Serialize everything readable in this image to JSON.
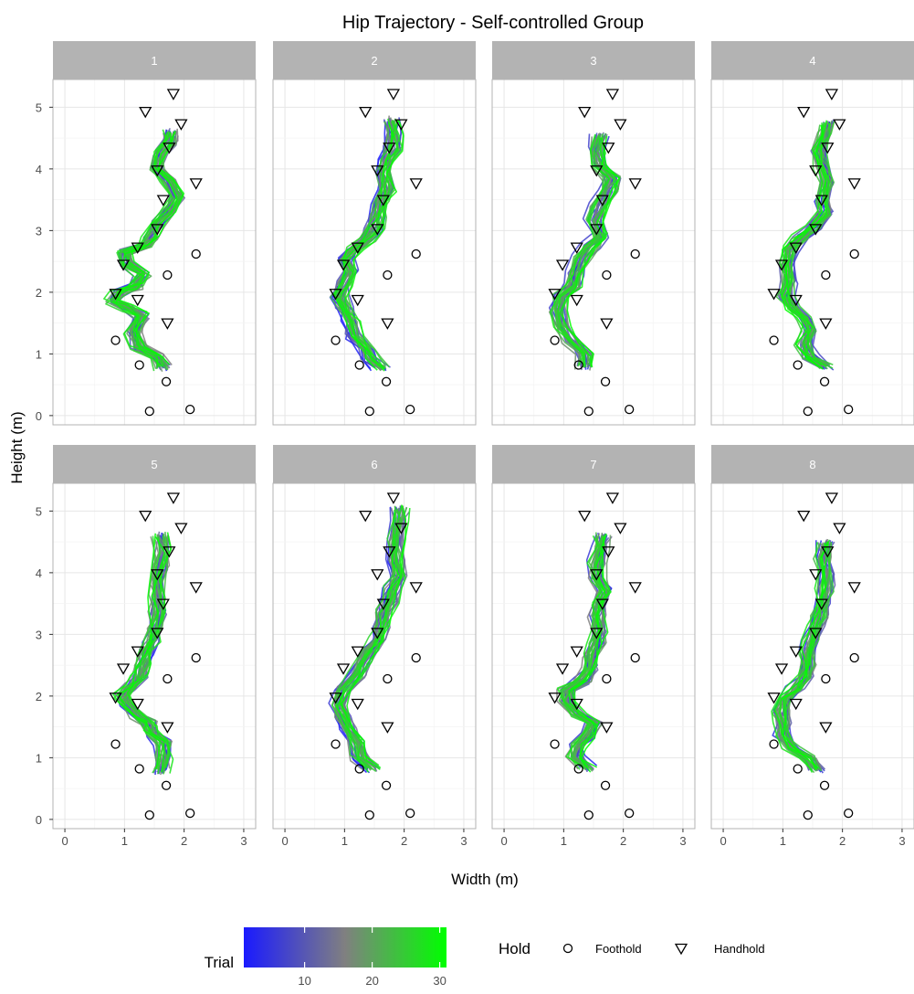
{
  "chart_data": {
    "type": "line",
    "title": "Hip Trajectory  - Self-controlled Group",
    "xlabel": "Width (m)",
    "ylabel": "Height (m)",
    "xlim": [
      -0.2,
      3.2
    ],
    "ylim": [
      -0.15,
      5.45
    ],
    "x_ticks": [
      0,
      1,
      2,
      3
    ],
    "y_ticks": [
      0,
      1,
      2,
      3,
      4,
      5
    ],
    "grid": true,
    "facets": [
      "1",
      "2",
      "3",
      "4",
      "5",
      "6",
      "7",
      "8"
    ],
    "holds": {
      "foothold": [
        [
          1.42,
          0.07
        ],
        [
          2.1,
          0.1
        ],
        [
          1.7,
          0.55
        ],
        [
          1.25,
          0.82
        ],
        [
          0.85,
          1.22
        ],
        [
          1.72,
          2.28
        ],
        [
          2.2,
          2.62
        ]
      ],
      "handhold": [
        [
          1.22,
          1.88
        ],
        [
          1.72,
          1.5
        ],
        [
          0.85,
          1.98
        ],
        [
          0.98,
          2.45
        ],
        [
          1.22,
          2.73
        ],
        [
          1.55,
          3.03
        ],
        [
          1.65,
          3.5
        ],
        [
          2.2,
          3.77
        ],
        [
          1.55,
          3.98
        ],
        [
          1.75,
          4.35
        ],
        [
          1.95,
          4.73
        ],
        [
          1.35,
          4.93
        ],
        [
          1.82,
          5.22
        ]
      ]
    },
    "color_scale": {
      "title": "Trial",
      "min": 1,
      "max": 31,
      "low": "#1a1aff",
      "mid": "#808080",
      "high": "#00ff00",
      "ticks": [
        10,
        20,
        30
      ]
    },
    "legend": {
      "title": "Hold",
      "entries": [
        {
          "label": "Foothold",
          "shape": "circle"
        },
        {
          "label": "Handhold",
          "shape": "triangle-down"
        }
      ]
    },
    "trajectory_paths": [
      [
        [
          1.65,
          0.78
        ],
        [
          1.55,
          0.95
        ],
        [
          1.25,
          1.1
        ],
        [
          1.15,
          1.35
        ],
        [
          1.3,
          1.62
        ],
        [
          1.05,
          1.75
        ],
        [
          0.82,
          1.85
        ],
        [
          0.92,
          2.0
        ],
        [
          1.2,
          2.1
        ],
        [
          1.3,
          2.3
        ],
        [
          1.05,
          2.45
        ],
        [
          1.0,
          2.65
        ],
        [
          1.35,
          2.75
        ],
        [
          1.45,
          2.9
        ],
        [
          1.55,
          3.1
        ],
        [
          1.75,
          3.3
        ],
        [
          1.9,
          3.55
        ],
        [
          1.75,
          3.8
        ],
        [
          1.55,
          4.0
        ],
        [
          1.6,
          4.25
        ],
        [
          1.75,
          4.45
        ],
        [
          1.78,
          4.6
        ]
      ],
      [
        [
          1.6,
          0.78
        ],
        [
          1.45,
          0.92
        ],
        [
          1.35,
          1.1
        ],
        [
          1.15,
          1.3
        ],
        [
          1.1,
          1.55
        ],
        [
          1.0,
          1.75
        ],
        [
          0.9,
          1.95
        ],
        [
          1.0,
          2.15
        ],
        [
          1.1,
          2.35
        ],
        [
          1.0,
          2.55
        ],
        [
          1.15,
          2.7
        ],
        [
          1.35,
          2.85
        ],
        [
          1.5,
          3.05
        ],
        [
          1.55,
          3.25
        ],
        [
          1.6,
          3.45
        ],
        [
          1.7,
          3.7
        ],
        [
          1.65,
          3.95
        ],
        [
          1.7,
          4.15
        ],
        [
          1.8,
          4.35
        ],
        [
          1.82,
          4.6
        ],
        [
          1.8,
          4.8
        ]
      ],
      [
        [
          1.35,
          0.78
        ],
        [
          1.35,
          1.0
        ],
        [
          1.15,
          1.2
        ],
        [
          0.95,
          1.45
        ],
        [
          0.9,
          1.7
        ],
        [
          0.95,
          1.95
        ],
        [
          1.15,
          2.1
        ],
        [
          1.2,
          2.3
        ],
        [
          1.3,
          2.55
        ],
        [
          1.45,
          2.75
        ],
        [
          1.6,
          2.9
        ],
        [
          1.5,
          3.15
        ],
        [
          1.6,
          3.4
        ],
        [
          1.75,
          3.65
        ],
        [
          1.8,
          3.85
        ],
        [
          1.6,
          4.05
        ],
        [
          1.55,
          4.3
        ],
        [
          1.6,
          4.55
        ]
      ],
      [
        [
          1.7,
          0.8
        ],
        [
          1.45,
          0.95
        ],
        [
          1.35,
          1.15
        ],
        [
          1.45,
          1.4
        ],
        [
          1.35,
          1.6
        ],
        [
          1.15,
          1.75
        ],
        [
          1.05,
          1.95
        ],
        [
          1.1,
          2.2
        ],
        [
          1.05,
          2.45
        ],
        [
          1.1,
          2.7
        ],
        [
          1.3,
          2.9
        ],
        [
          1.5,
          3.05
        ],
        [
          1.7,
          3.3
        ],
        [
          1.65,
          3.5
        ],
        [
          1.75,
          3.8
        ],
        [
          1.65,
          4.05
        ],
        [
          1.6,
          4.3
        ],
        [
          1.7,
          4.55
        ],
        [
          1.75,
          4.75
        ]
      ],
      [
        [
          1.6,
          0.78
        ],
        [
          1.65,
          1.0
        ],
        [
          1.65,
          1.25
        ],
        [
          1.45,
          1.4
        ],
        [
          1.4,
          1.55
        ],
        [
          1.25,
          1.65
        ],
        [
          1.05,
          1.85
        ],
        [
          0.95,
          2.0
        ],
        [
          1.1,
          2.15
        ],
        [
          1.25,
          2.3
        ],
        [
          1.3,
          2.5
        ],
        [
          1.35,
          2.7
        ],
        [
          1.45,
          2.9
        ],
        [
          1.5,
          3.1
        ],
        [
          1.55,
          3.35
        ],
        [
          1.55,
          3.6
        ],
        [
          1.55,
          3.85
        ],
        [
          1.6,
          4.1
        ],
        [
          1.65,
          4.35
        ],
        [
          1.6,
          4.6
        ]
      ],
      [
        [
          1.45,
          0.82
        ],
        [
          1.25,
          1.0
        ],
        [
          1.2,
          1.25
        ],
        [
          1.05,
          1.45
        ],
        [
          0.95,
          1.65
        ],
        [
          0.9,
          1.85
        ],
        [
          0.95,
          2.1
        ],
        [
          1.2,
          2.35
        ],
        [
          1.3,
          2.55
        ],
        [
          1.4,
          2.75
        ],
        [
          1.55,
          2.9
        ],
        [
          1.6,
          3.1
        ],
        [
          1.65,
          3.35
        ],
        [
          1.75,
          3.55
        ],
        [
          1.8,
          3.75
        ],
        [
          1.9,
          3.95
        ],
        [
          1.85,
          4.2
        ],
        [
          1.85,
          4.5
        ],
        [
          1.9,
          4.85
        ],
        [
          1.92,
          5.05
        ]
      ],
      [
        [
          1.4,
          0.82
        ],
        [
          1.2,
          1.0
        ],
        [
          1.25,
          1.2
        ],
        [
          1.4,
          1.35
        ],
        [
          1.5,
          1.55
        ],
        [
          1.25,
          1.7
        ],
        [
          1.05,
          1.9
        ],
        [
          1.05,
          2.1
        ],
        [
          1.3,
          2.25
        ],
        [
          1.45,
          2.45
        ],
        [
          1.45,
          2.65
        ],
        [
          1.55,
          2.85
        ],
        [
          1.6,
          3.05
        ],
        [
          1.55,
          3.3
        ],
        [
          1.6,
          3.5
        ],
        [
          1.7,
          3.7
        ],
        [
          1.55,
          3.9
        ],
        [
          1.55,
          4.15
        ],
        [
          1.6,
          4.4
        ],
        [
          1.65,
          4.6
        ]
      ],
      [
        [
          1.55,
          0.8
        ],
        [
          1.4,
          1.0
        ],
        [
          1.15,
          1.15
        ],
        [
          1.0,
          1.35
        ],
        [
          1.0,
          1.55
        ],
        [
          0.95,
          1.75
        ],
        [
          1.0,
          1.95
        ],
        [
          1.2,
          2.1
        ],
        [
          1.35,
          2.3
        ],
        [
          1.4,
          2.5
        ],
        [
          1.4,
          2.7
        ],
        [
          1.45,
          2.9
        ],
        [
          1.55,
          3.1
        ],
        [
          1.6,
          3.3
        ],
        [
          1.65,
          3.5
        ],
        [
          1.7,
          3.75
        ],
        [
          1.7,
          4.0
        ],
        [
          1.65,
          4.25
        ],
        [
          1.7,
          4.5
        ]
      ]
    ]
  }
}
